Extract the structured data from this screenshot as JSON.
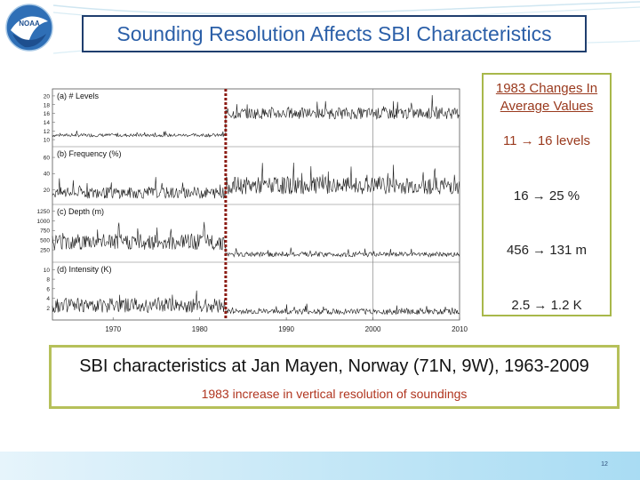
{
  "title": "Sounding Resolution Affects SBI Characteristics",
  "logo_text": "NOAA",
  "chart_data": {
    "type": "line",
    "xlabel": "",
    "x_ticks": [
      "1970",
      "1980",
      "1990",
      "2000",
      "2010"
    ],
    "xlim": [
      1963,
      2010
    ],
    "marker_year": 1983,
    "reference_year": 2000,
    "panels": [
      {
        "label": "(a) # Levels",
        "y_ticks": [
          "20",
          "18",
          "16",
          "14",
          "12",
          "10"
        ],
        "ylim": [
          9,
          21
        ],
        "segments": [
          {
            "from": 1963,
            "to": 1983,
            "mean": 11,
            "amp": 0.6
          },
          {
            "from": 1983,
            "to": 2010,
            "mean": 16,
            "amp": 2.2
          }
        ]
      },
      {
        "label": "(b) Frequency (%)",
        "y_ticks": [
          "60",
          "40",
          "20"
        ],
        "ylim": [
          5,
          70
        ],
        "segments": [
          {
            "from": 1963,
            "to": 1983,
            "mean": 16,
            "amp": 12
          },
          {
            "from": 1983,
            "to": 2010,
            "mean": 25,
            "amp": 18
          }
        ]
      },
      {
        "label": "(c) Depth (m)",
        "y_ticks": [
          "1250",
          "1000",
          "750",
          "500",
          "250"
        ],
        "ylim": [
          0,
          1350
        ],
        "segments": [
          {
            "from": 1963,
            "to": 1983,
            "mean": 456,
            "amp": 350
          },
          {
            "from": 1983,
            "to": 2010,
            "mean": 131,
            "amp": 100
          }
        ]
      },
      {
        "label": "(d) Intensity (K)",
        "y_ticks": [
          "10",
          "8",
          "6",
          "4",
          "2"
        ],
        "ylim": [
          0,
          11
        ],
        "segments": [
          {
            "from": 1963,
            "to": 1983,
            "mean": 2.5,
            "amp": 2.5
          },
          {
            "from": 1983,
            "to": 2010,
            "mean": 1.2,
            "amp": 1.0
          }
        ]
      }
    ],
    "grid": false
  },
  "changes": {
    "heading_line1": "1983 Changes In",
    "heading_line2": "Average Values",
    "levels": "11 → 16 levels",
    "frequency": "16 → 25 %",
    "depth": "456 → 131 m",
    "intensity": "2.5 → 1.2 K"
  },
  "caption": {
    "title": "SBI characteristics at Jan Mayen, Norway (71N, 9W), 1963-2009",
    "subtitle": "1983 increase in vertical resolution of soundings"
  },
  "slide_number": "12",
  "colors": {
    "title_text": "#2b5fa8",
    "title_border": "#1f3e6e",
    "marker_line": "#8b1a12",
    "box_border": "#b6c05a",
    "accent_text": "#b0351f"
  }
}
